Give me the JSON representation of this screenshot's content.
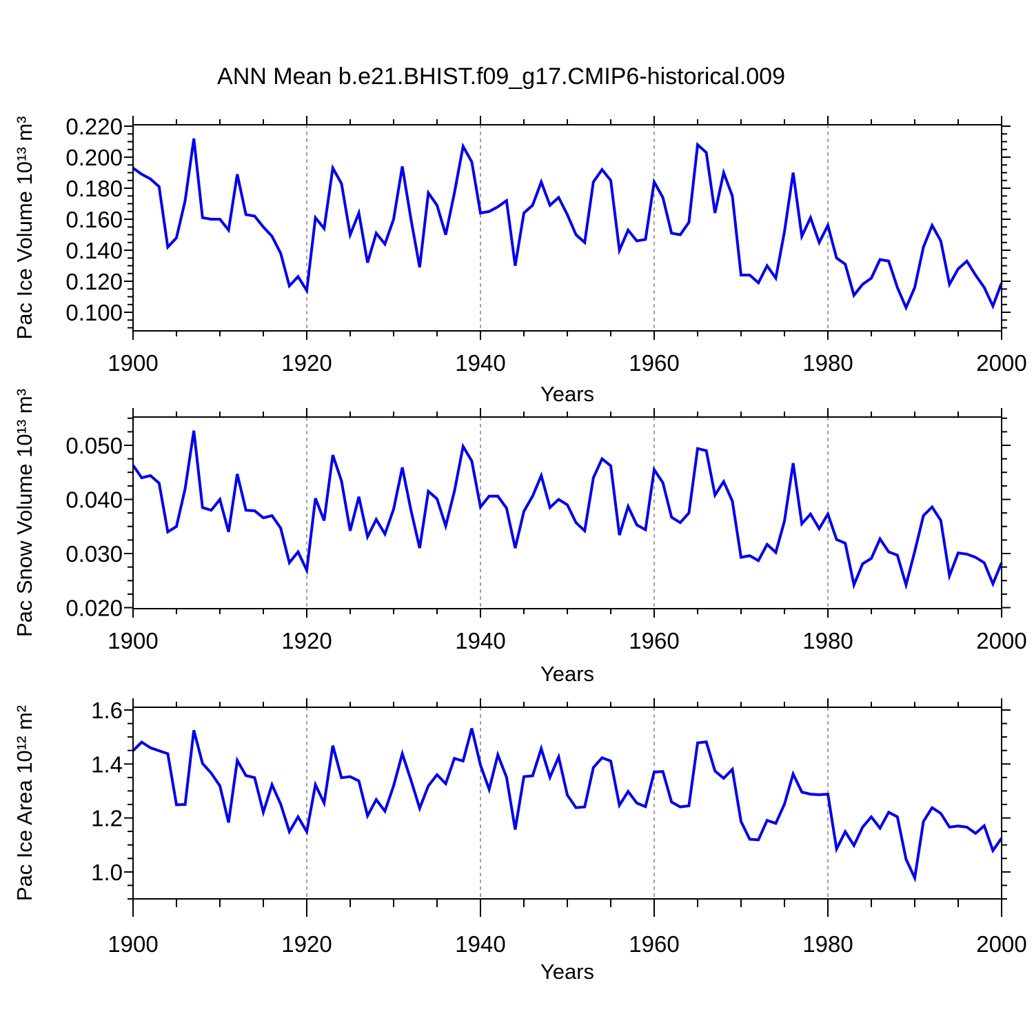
{
  "title": "ANN Mean b.e21.BHIST.f09_g17.CMIP6-historical.009",
  "xlabel": "Years",
  "line_color": "#0202ee",
  "grid_color": "#808080",
  "frame_color": "#000000",
  "chart_data": [
    {
      "type": "line",
      "name": "pac-ice-volume",
      "ylabel": "Pac Ice Volume 10¹³ m³",
      "xlabel": "Years",
      "xlim": [
        1900,
        2000
      ],
      "ylim": [
        0.088,
        0.2209
      ],
      "x_major_ticks": [
        1900,
        1920,
        1940,
        1960,
        1980,
        2000
      ],
      "x_tick_labels": [
        "1900",
        "1920",
        "1940",
        "1960",
        "1980",
        "2000"
      ],
      "x_minor_step": 5,
      "grid_x": [
        1920,
        1940,
        1960,
        1980
      ],
      "yticks": [
        0.1,
        0.12,
        0.14,
        0.16,
        0.18,
        0.2,
        0.22
      ],
      "ytick_labels": [
        "0.100",
        "0.120",
        "0.140",
        "0.160",
        "0.180",
        "0.200",
        "0.220"
      ],
      "y_minor_step": 0.005,
      "x_start": 1900,
      "x_step": 1,
      "values": [
        0.193,
        0.189,
        0.186,
        0.181,
        0.142,
        0.148,
        0.172,
        0.212,
        0.161,
        0.16,
        0.16,
        0.153,
        0.189,
        0.163,
        0.162,
        0.155,
        0.149,
        0.138,
        0.117,
        0.123,
        0.114,
        0.161,
        0.154,
        0.193,
        0.183,
        0.15,
        0.164,
        0.132,
        0.151,
        0.144,
        0.16,
        0.194,
        0.16,
        0.129,
        0.177,
        0.169,
        0.15,
        0.177,
        0.207,
        0.197,
        0.164,
        0.165,
        0.168,
        0.172,
        0.13,
        0.164,
        0.169,
        0.184,
        0.169,
        0.174,
        0.163,
        0.15,
        0.145,
        0.184,
        0.192,
        0.185,
        0.14,
        0.153,
        0.146,
        0.147,
        0.184,
        0.174,
        0.151,
        0.15,
        0.158,
        0.208,
        0.203,
        0.164,
        0.19,
        0.175,
        0.124,
        0.124,
        0.119,
        0.13,
        0.122,
        0.152,
        0.19,
        0.149,
        0.161,
        0.145,
        0.156,
        0.135,
        0.131,
        0.111,
        0.118,
        0.122,
        0.134,
        0.133,
        0.116,
        0.103,
        0.116,
        0.142,
        0.156,
        0.146,
        0.118,
        0.128,
        0.133,
        0.124,
        0.116,
        0.104,
        0.119
      ]
    },
    {
      "type": "line",
      "name": "pac-snow-volume",
      "ylabel": "Pac Snow Volume 10¹³ m³",
      "xlabel": "Years",
      "xlim": [
        1900,
        2000
      ],
      "ylim": [
        0.01981,
        0.05522
      ],
      "x_major_ticks": [
        1900,
        1920,
        1940,
        1960,
        1980,
        2000
      ],
      "x_tick_labels": [
        "1900",
        "1920",
        "1940",
        "1960",
        "1980",
        "2000"
      ],
      "x_minor_step": 5,
      "grid_x": [
        1920,
        1940,
        1960,
        1980
      ],
      "yticks": [
        0.02,
        0.03,
        0.04,
        0.05
      ],
      "ytick_labels": [
        "0.020",
        "0.030",
        "0.040",
        "0.050"
      ],
      "y_minor_step": 0.0025,
      "x_start": 1900,
      "x_step": 1,
      "values": [
        0.0463,
        0.044,
        0.0444,
        0.043,
        0.034,
        0.035,
        0.042,
        0.0527,
        0.0385,
        0.038,
        0.04,
        0.034,
        0.0447,
        0.038,
        0.0379,
        0.0366,
        0.037,
        0.0347,
        0.0283,
        0.0303,
        0.0269,
        0.0402,
        0.0361,
        0.0482,
        0.0434,
        0.0342,
        0.0405,
        0.0331,
        0.0363,
        0.0336,
        0.0382,
        0.0459,
        0.038,
        0.031,
        0.0415,
        0.0401,
        0.0351,
        0.0415,
        0.0498,
        0.0471,
        0.0386,
        0.0406,
        0.0406,
        0.0384,
        0.031,
        0.0378,
        0.0406,
        0.0444,
        0.0385,
        0.04,
        0.039,
        0.0357,
        0.0342,
        0.044,
        0.0475,
        0.0462,
        0.0334,
        0.0387,
        0.0353,
        0.0344,
        0.0455,
        0.0431,
        0.0367,
        0.0357,
        0.0375,
        0.0494,
        0.049,
        0.0408,
        0.0433,
        0.0397,
        0.0293,
        0.0296,
        0.0287,
        0.0317,
        0.0302,
        0.036,
        0.0467,
        0.0355,
        0.0373,
        0.0346,
        0.0373,
        0.0326,
        0.0319,
        0.0242,
        0.0281,
        0.0291,
        0.0327,
        0.0303,
        0.0297,
        0.0242,
        0.0304,
        0.037,
        0.0386,
        0.0361,
        0.0259,
        0.0301,
        0.0299,
        0.0293,
        0.0283,
        0.0244,
        0.0283
      ]
    },
    {
      "type": "line",
      "name": "pac-ice-area",
      "ylabel": "Pac Ice Area 10¹² m²",
      "xlabel": "Years",
      "xlim": [
        1900,
        2000
      ],
      "ylim": [
        0.9,
        1.6102
      ],
      "x_major_ticks": [
        1900,
        1920,
        1940,
        1960,
        1980,
        2000
      ],
      "x_tick_labels": [
        "1900",
        "1920",
        "1940",
        "1960",
        "1980",
        "2000"
      ],
      "x_minor_step": 5,
      "grid_x": [
        1920,
        1940,
        1960,
        1980
      ],
      "yticks": [
        1.0,
        1.2,
        1.4,
        1.6
      ],
      "ytick_labels": [
        "1.0",
        "1.2",
        "1.4",
        "1.6"
      ],
      "y_minor_step": 0.05,
      "x_start": 1900,
      "x_step": 1,
      "values": [
        1.449,
        1.481,
        1.46,
        1.449,
        1.438,
        1.249,
        1.25,
        1.525,
        1.402,
        1.366,
        1.319,
        1.183,
        1.413,
        1.357,
        1.349,
        1.221,
        1.323,
        1.251,
        1.149,
        1.204,
        1.149,
        1.323,
        1.255,
        1.468,
        1.349,
        1.353,
        1.337,
        1.208,
        1.268,
        1.225,
        1.319,
        1.438,
        1.34,
        1.236,
        1.319,
        1.36,
        1.327,
        1.421,
        1.411,
        1.532,
        1.396,
        1.306,
        1.434,
        1.351,
        1.157,
        1.353,
        1.356,
        1.457,
        1.351,
        1.426,
        1.285,
        1.238,
        1.241,
        1.387,
        1.423,
        1.411,
        1.247,
        1.298,
        1.255,
        1.242,
        1.37,
        1.372,
        1.259,
        1.241,
        1.245,
        1.478,
        1.482,
        1.374,
        1.347,
        1.38,
        1.187,
        1.121,
        1.119,
        1.191,
        1.18,
        1.251,
        1.363,
        1.296,
        1.288,
        1.286,
        1.288,
        1.085,
        1.149,
        1.098,
        1.166,
        1.204,
        1.162,
        1.221,
        1.204,
        1.047,
        0.978,
        1.187,
        1.238,
        1.217,
        1.166,
        1.17,
        1.166,
        1.143,
        1.171,
        1.079,
        1.125
      ]
    }
  ]
}
